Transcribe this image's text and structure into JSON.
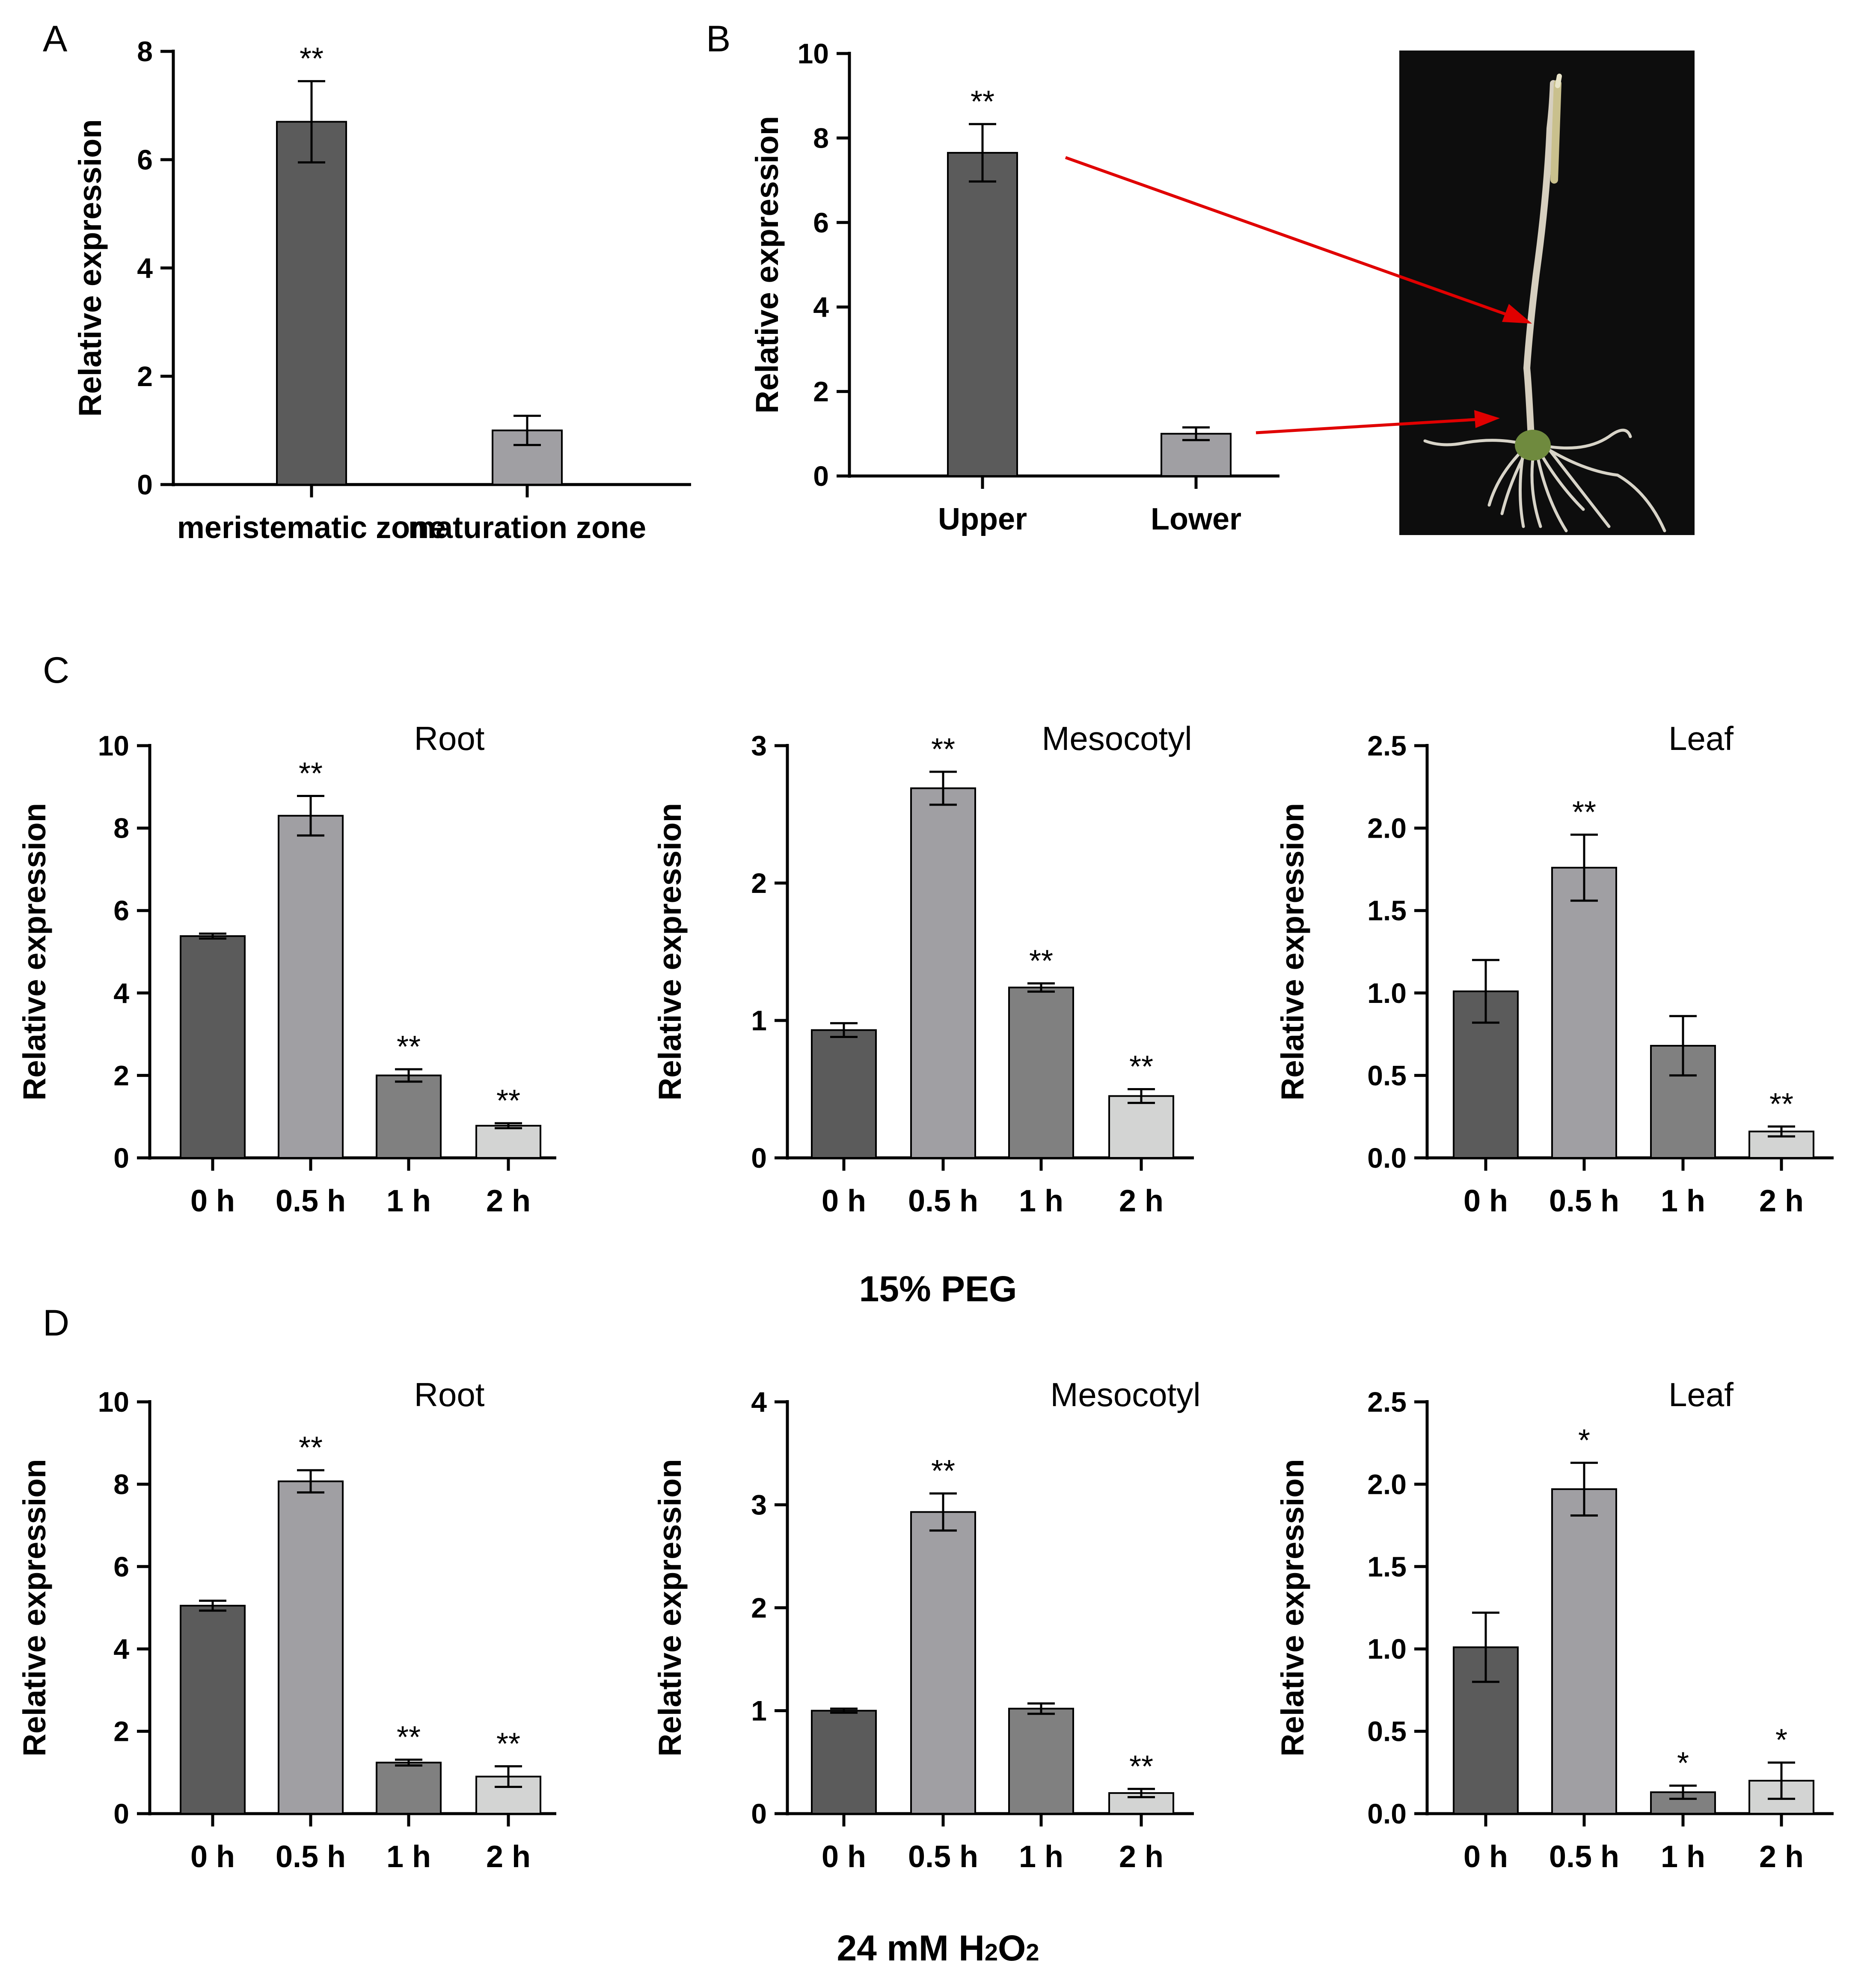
{
  "figure": {
    "panel_labels": [
      "A",
      "B",
      "C",
      "D"
    ],
    "group_labels": {
      "C": "15% PEG",
      "D_prefix": "24 mM H",
      "D_sub1": "2",
      "D_mid": "O",
      "D_sub2": "2"
    }
  },
  "colors": {
    "bar_dark": "#5b5b5b",
    "bar_mid": "#a09fa3",
    "bar_gray": "#808080",
    "bar_light": "#d3d4d3",
    "arrow": "#e00000",
    "photo_bg": "#0d0d0d"
  },
  "chart_data": [
    {
      "id": "A",
      "type": "bar",
      "title": "",
      "xlabel": "",
      "ylabel": "Relative expression",
      "ylim": [
        0,
        8
      ],
      "yticks": [
        "0",
        "2",
        "4",
        "6",
        "8"
      ],
      "categories": [
        "meristematic zone",
        "maturation zone"
      ],
      "values": [
        6.7,
        1.0
      ],
      "errors": [
        0.75,
        0.27
      ],
      "significance": [
        "**",
        ""
      ],
      "colors": [
        "bar_dark",
        "bar_mid"
      ]
    },
    {
      "id": "B",
      "type": "bar",
      "title": "",
      "xlabel": "",
      "ylabel": "Relative expression",
      "ylim": [
        0,
        10
      ],
      "yticks": [
        "0",
        "2",
        "4",
        "6",
        "8",
        "10"
      ],
      "categories": [
        "Upper",
        "Lower"
      ],
      "values": [
        7.65,
        1.0
      ],
      "errors": [
        0.68,
        0.15
      ],
      "significance": [
        "**",
        ""
      ],
      "colors": [
        "bar_dark",
        "bar_mid"
      ]
    },
    {
      "id": "C-root",
      "type": "bar",
      "title": "Root",
      "ylabel": "Relative expression",
      "ylim": [
        0,
        10
      ],
      "yticks": [
        "0",
        "2",
        "4",
        "6",
        "8",
        "10"
      ],
      "categories": [
        "0 h",
        "0.5 h",
        "1 h",
        "2 h"
      ],
      "values": [
        5.38,
        8.3,
        2.0,
        0.78
      ],
      "errors": [
        0.06,
        0.48,
        0.15,
        0.06
      ],
      "significance": [
        "",
        "**",
        "**",
        "**"
      ],
      "colors": [
        "bar_dark",
        "bar_mid",
        "bar_gray",
        "bar_light"
      ]
    },
    {
      "id": "C-mesocotyl",
      "type": "bar",
      "title": "Mesocotyl",
      "ylabel": "Relative expression",
      "ylim": [
        0,
        3
      ],
      "yticks": [
        "0",
        "1",
        "2",
        "3"
      ],
      "categories": [
        "0 h",
        "0.5 h",
        "1 h",
        "2 h"
      ],
      "values": [
        0.93,
        2.69,
        1.24,
        0.45
      ],
      "errors": [
        0.05,
        0.12,
        0.03,
        0.05
      ],
      "significance": [
        "",
        "**",
        "**",
        "**"
      ],
      "colors": [
        "bar_dark",
        "bar_mid",
        "bar_gray",
        "bar_light"
      ]
    },
    {
      "id": "C-leaf",
      "type": "bar",
      "title": "Leaf",
      "ylabel": "Relative expression",
      "ylim": [
        0,
        2.5
      ],
      "yticks": [
        "0.0",
        "0.5",
        "1.0",
        "1.5",
        "2.0",
        "2.5"
      ],
      "categories": [
        "0 h",
        "0.5 h",
        "1 h",
        "2 h"
      ],
      "values": [
        1.01,
        1.76,
        0.68,
        0.16
      ],
      "errors": [
        0.19,
        0.2,
        0.18,
        0.03
      ],
      "significance": [
        "",
        "**",
        "",
        "**"
      ],
      "colors": [
        "bar_dark",
        "bar_mid",
        "bar_gray",
        "bar_light"
      ]
    },
    {
      "id": "D-root",
      "type": "bar",
      "title": "Root",
      "ylabel": "Relative expression",
      "ylim": [
        0,
        10
      ],
      "yticks": [
        "0",
        "2",
        "4",
        "6",
        "8",
        "10"
      ],
      "categories": [
        "0 h",
        "0.5 h",
        "1 h",
        "2 h"
      ],
      "values": [
        5.05,
        8.07,
        1.24,
        0.9
      ],
      "errors": [
        0.12,
        0.27,
        0.07,
        0.25
      ],
      "significance": [
        "",
        "**",
        "**",
        "**"
      ],
      "colors": [
        "bar_dark",
        "bar_mid",
        "bar_gray",
        "bar_light"
      ]
    },
    {
      "id": "D-mesocotyl",
      "type": "bar",
      "title": "Mesocotyl",
      "ylabel": "Relative expression",
      "ylim": [
        0,
        4
      ],
      "yticks": [
        "0",
        "1",
        "2",
        "3",
        "4"
      ],
      "categories": [
        "0 h",
        "0.5 h",
        "1 h",
        "2 h"
      ],
      "values": [
        1.0,
        2.93,
        1.02,
        0.2
      ],
      "errors": [
        0.02,
        0.18,
        0.05,
        0.04
      ],
      "significance": [
        "",
        "**",
        "",
        "**"
      ],
      "colors": [
        "bar_dark",
        "bar_mid",
        "bar_gray",
        "bar_light"
      ]
    },
    {
      "id": "D-leaf",
      "type": "bar",
      "title": "Leaf",
      "ylabel": "Relative expression",
      "ylim": [
        0,
        2.5
      ],
      "yticks": [
        "0.0",
        "0.5",
        "1.0",
        "1.5",
        "2.0",
        "2.5"
      ],
      "categories": [
        "0 h",
        "0.5 h",
        "1 h",
        "2 h"
      ],
      "values": [
        1.01,
        1.97,
        0.13,
        0.2
      ],
      "errors": [
        0.21,
        0.16,
        0.04,
        0.11
      ],
      "significance": [
        "",
        "*",
        "*",
        "*"
      ],
      "colors": [
        "bar_dark",
        "bar_mid",
        "bar_gray",
        "bar_light"
      ]
    }
  ]
}
